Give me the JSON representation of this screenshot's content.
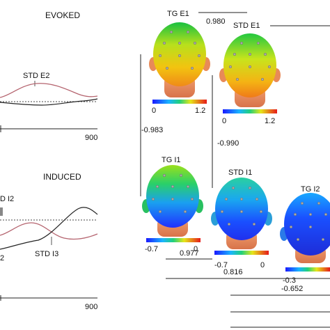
{
  "panels": {
    "evoked": {
      "title": "EVOKED",
      "annotation": "STD E2",
      "x_tick": "900"
    },
    "induced": {
      "title": "INDUCED",
      "annotation_left": "D I2",
      "annotation_bottom": "STD I3",
      "x_tick": "900",
      "edge_char": "2"
    }
  },
  "heads": [
    {
      "label": "TG E1",
      "cbar_min": "0",
      "cbar_max": "1.2"
    },
    {
      "label": "STD E1",
      "cbar_min": "0",
      "cbar_max": "1.2"
    },
    {
      "label": "TG I1",
      "cbar_min": "-0.7",
      "cbar_max": "0"
    },
    {
      "label": "STD I1",
      "cbar_min": "-0.7",
      "cbar_max": "0"
    },
    {
      "label": "TG I2",
      "cbar_min": "-0.3",
      "cbar_max": ""
    }
  ],
  "correlations": {
    "tge1_stde1": "0.980",
    "tge1_tgi1": "-0.983",
    "stde1_stdi1": "-0.990",
    "tgi1_stdi1": "0.977",
    "tgi1_tgi2": "0.816",
    "stdi1_tgi2": "-0.652"
  },
  "colors": {
    "evoked_trace": "#b5646f",
    "flat_trace": "#222222"
  }
}
